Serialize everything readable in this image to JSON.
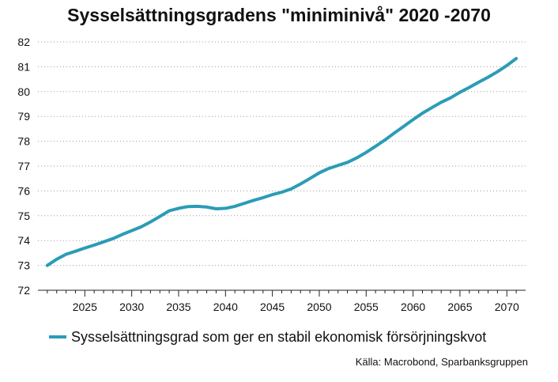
{
  "chart_data": {
    "type": "line",
    "title": "Sysselsättningsgradens \"miniminivå\" 2020 -2070",
    "xlabel": "",
    "ylabel": "",
    "xlim": [
      2020,
      2072
    ],
    "ylim": [
      72,
      82
    ],
    "x_ticks": [
      2025,
      2030,
      2035,
      2040,
      2045,
      2050,
      2055,
      2060,
      2065,
      2070
    ],
    "y_ticks": [
      72,
      73,
      74,
      75,
      76,
      77,
      78,
      79,
      80,
      81,
      82
    ],
    "grid": "horizontal-dotted",
    "legend_position": "bottom-left",
    "series": [
      {
        "name": "Sysselsättningsgrad som ger en stabil ekonomisk försörjningskvot",
        "color": "#2b9cb6",
        "x": [
          2021,
          2022,
          2023,
          2024,
          2025,
          2026,
          2027,
          2028,
          2029,
          2030,
          2031,
          2032,
          2033,
          2034,
          2035,
          2036,
          2037,
          2038,
          2039,
          2040,
          2041,
          2042,
          2043,
          2044,
          2045,
          2046,
          2047,
          2048,
          2049,
          2050,
          2051,
          2052,
          2053,
          2054,
          2055,
          2056,
          2057,
          2058,
          2059,
          2060,
          2061,
          2062,
          2063,
          2064,
          2065,
          2066,
          2067,
          2068,
          2069,
          2070,
          2071
        ],
        "y": [
          73.0,
          73.25,
          73.45,
          73.57,
          73.7,
          73.82,
          73.95,
          74.08,
          74.25,
          74.4,
          74.55,
          74.75,
          74.97,
          75.2,
          75.3,
          75.37,
          75.38,
          75.35,
          75.28,
          75.3,
          75.38,
          75.5,
          75.62,
          75.73,
          75.85,
          75.95,
          76.08,
          76.28,
          76.5,
          76.73,
          76.9,
          77.03,
          77.15,
          77.33,
          77.55,
          77.8,
          78.05,
          78.33,
          78.6,
          78.87,
          79.13,
          79.35,
          79.57,
          79.75,
          79.97,
          80.17,
          80.38,
          80.58,
          80.8,
          81.05,
          81.33
        ]
      }
    ]
  },
  "source": "Källa: Macrobond, Sparbanksgruppen"
}
